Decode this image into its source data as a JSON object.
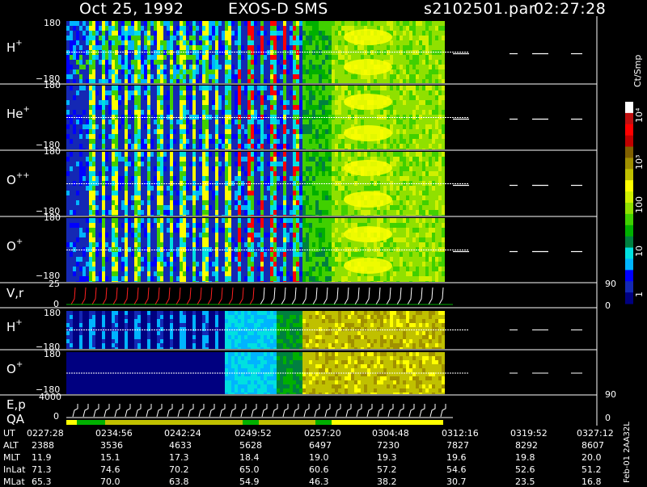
{
  "header": {
    "date": "Oct 25, 1992",
    "instrument": "EXOS-D SMS",
    "filename": "s2102501.par",
    "time": "02:27:28"
  },
  "panels": [
    {
      "label": "H",
      "sup": "+",
      "tick_top": "180",
      "tick_bottom": "−180"
    },
    {
      "label": "He",
      "sup": "+",
      "tick_top": "180",
      "tick_bottom": "−180"
    },
    {
      "label": "O",
      "sup": "++",
      "tick_top": "180",
      "tick_bottom": "−180"
    },
    {
      "label": "O",
      "sup": "+",
      "tick_top": "180",
      "tick_bottom": "−180"
    }
  ],
  "vr_panel": {
    "label": "V,r",
    "tick_top": "25",
    "tick_zero": "0",
    "right_top": "90",
    "right_zero": "0"
  },
  "lower_panels": [
    {
      "label": "H",
      "sup": "+",
      "tick_top": "180",
      "tick_bottom": "−180"
    },
    {
      "label": "O",
      "sup": "+",
      "tick_top": "180",
      "tick_bottom": "−180"
    }
  ],
  "ep_panel": {
    "label": "E,p",
    "tick_top": "4000",
    "tick_zero": "0",
    "right_top": "90",
    "right_zero": "0",
    "qa_label": "QA"
  },
  "colorbar": {
    "unit_label": "Ct/Smp",
    "ticks": [
      {
        "label": "10⁴",
        "value": 10000
      },
      {
        "label": "10³",
        "value": 1000
      },
      {
        "label": "100",
        "value": 100
      },
      {
        "label": "10",
        "value": 10
      },
      {
        "label": "1",
        "value": 1
      }
    ],
    "colors": [
      "#000080",
      "#1428b4",
      "#0000ff",
      "#00b4ff",
      "#00e0e0",
      "#008040",
      "#00b000",
      "#40d000",
      "#90e000",
      "#d0f000",
      "#ffff00",
      "#c0c000",
      "#a09000",
      "#806000",
      "#c00000",
      "#ff0000",
      "#c01010",
      "#ffffff"
    ]
  },
  "timeline": {
    "labels": {
      "ut": "UT",
      "alt": "ALT",
      "mlt": "MLT",
      "inlat": "InLat",
      "mlat": "MLat"
    },
    "columns": [
      {
        "ut": "0227:28",
        "alt": "2388",
        "mlt": "11.9",
        "inlat": "71.3",
        "mlat": "65.3"
      },
      {
        "ut": "0234:56",
        "alt": "3536",
        "mlt": "15.1",
        "inlat": "74.6",
        "mlat": "70.0"
      },
      {
        "ut": "0242:24",
        "alt": "4633",
        "mlt": "17.3",
        "inlat": "70.2",
        "mlat": "63.8"
      },
      {
        "ut": "0249:52",
        "alt": "5628",
        "mlt": "18.4",
        "inlat": "65.0",
        "mlat": "54.9"
      },
      {
        "ut": "0257:20",
        "alt": "6497",
        "mlt": "19.0",
        "inlat": "60.6",
        "mlat": "46.3"
      },
      {
        "ut": "0304:48",
        "alt": "7230",
        "mlt": "19.3",
        "inlat": "57.2",
        "mlat": "38.2"
      },
      {
        "ut": "0312:16",
        "alt": "7827",
        "mlt": "19.6",
        "inlat": "54.6",
        "mlat": "30.7"
      },
      {
        "ut": "0319:52",
        "alt": "8292",
        "mlt": "19.8",
        "inlat": "52.6",
        "mlat": "23.5"
      },
      {
        "ut": "0327:12",
        "alt": "8607",
        "mlt": "20.0",
        "inlat": "51.2",
        "mlat": "16.8"
      }
    ]
  },
  "side_note": "Feb-01 2AA32L",
  "chart_data": {
    "type": "heatmap",
    "title": "Oct 25, 1992   EXOS-D SMS",
    "x": [
      "0227:28",
      "0234:56",
      "0242:24",
      "0249:52",
      "0257:20",
      "0304:48",
      "0312:16",
      "0319:52",
      "0327:12"
    ],
    "xlabel": "UT",
    "ylim": [
      -180,
      180
    ],
    "colorscale_label": "Ct/Smp",
    "colorscale_range": [
      1,
      10000
    ],
    "series": [
      {
        "name": "H+",
        "data_end_ut": "0304:48"
      },
      {
        "name": "He+",
        "data_end_ut": "0304:48"
      },
      {
        "name": "O++",
        "data_end_ut": "0304:48"
      },
      {
        "name": "O+",
        "data_end_ut": "0304:48"
      }
    ]
  }
}
